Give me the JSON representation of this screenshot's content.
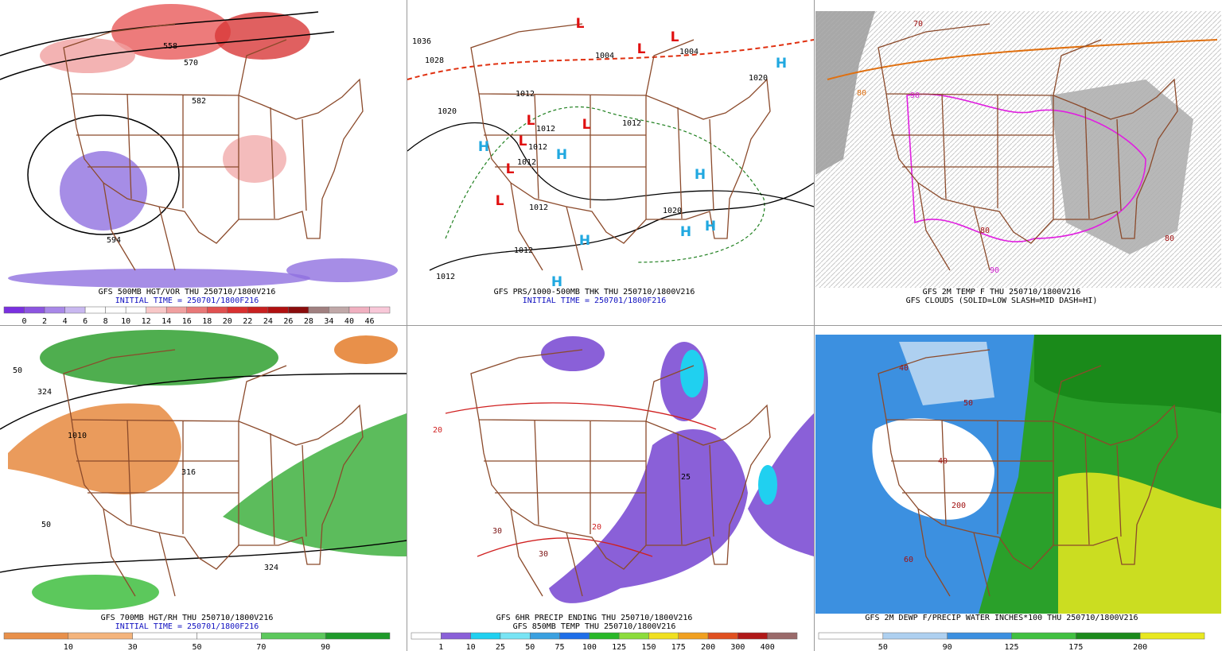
{
  "panels": [
    {
      "title_lines": [
        {
          "text": "GFS 500MB HGT/VOR THU 250710/1800V216",
          "color": "#000000"
        },
        {
          "text": "INITIAL TIME = 250701/1800F216",
          "color": "#1010c0"
        }
      ],
      "colorbar": {
        "labels": [
          0,
          2,
          4,
          6,
          8,
          10,
          12,
          14,
          16,
          18,
          20,
          22,
          24,
          26,
          28,
          34,
          40,
          46
        ],
        "colors": [
          "#7a30e0",
          "#8c55e0",
          "#a888e8",
          "#c9b8f0",
          "#ffffff",
          "#ffffff",
          "#ffffff",
          "#f8c8c8",
          "#f0a0a0",
          "#e87878",
          "#e05050",
          "#d83030",
          "#c82020",
          "#b01010",
          "#8a0c0c",
          "#a08080",
          "#c0a8a8",
          "#f0b0c0",
          "#f8c8d8"
        ]
      },
      "map_labels": [
        {
          "text": "558",
          "color": "#000000"
        },
        {
          "text": "570",
          "color": "#000000"
        },
        {
          "text": "582",
          "color": "#000000"
        },
        {
          "text": "594",
          "color": "#000000"
        }
      ]
    },
    {
      "title_lines": [
        {
          "text": "GFS PRS/1000-500MB THK THU 250710/1800V216",
          "color": "#000000"
        },
        {
          "text": "INITIAL TIME = 250701/1800F216",
          "color": "#1010c0"
        }
      ],
      "map_labels": [
        {
          "text": "L",
          "color": "#e01010"
        },
        {
          "text": "L",
          "color": "#e01010"
        },
        {
          "text": "L",
          "color": "#e01010"
        },
        {
          "text": "L",
          "color": "#e01010"
        },
        {
          "text": "L",
          "color": "#e01010"
        },
        {
          "text": "L",
          "color": "#e01010"
        },
        {
          "text": "L",
          "color": "#e01010"
        },
        {
          "text": "L",
          "color": "#e01010"
        },
        {
          "text": "H",
          "color": "#20a8e0"
        },
        {
          "text": "H",
          "color": "#20a8e0"
        },
        {
          "text": "H",
          "color": "#20a8e0"
        },
        {
          "text": "H",
          "color": "#20a8e0"
        },
        {
          "text": "H",
          "color": "#20a8e0"
        },
        {
          "text": "H",
          "color": "#20a8e0"
        },
        {
          "text": "H",
          "color": "#20a8e0"
        },
        {
          "text": "H",
          "color": "#20a8e0"
        },
        {
          "text": "1036",
          "color": "#000000"
        },
        {
          "text": "1028",
          "color": "#000000"
        },
        {
          "text": "1020",
          "color": "#000000"
        },
        {
          "text": "1012",
          "color": "#000000"
        },
        {
          "text": "1012",
          "color": "#000000"
        },
        {
          "text": "1012",
          "color": "#000000"
        },
        {
          "text": "1012",
          "color": "#000000"
        },
        {
          "text": "1012",
          "color": "#000000"
        },
        {
          "text": "1012",
          "color": "#000000"
        },
        {
          "text": "1012",
          "color": "#000000"
        },
        {
          "text": "1004",
          "color": "#000000"
        },
        {
          "text": "1004",
          "color": "#000000"
        },
        {
          "text": "1012",
          "color": "#000000"
        },
        {
          "text": "1020",
          "color": "#000000"
        },
        {
          "text": "1020",
          "color": "#000000"
        }
      ]
    },
    {
      "title_lines": [
        {
          "text": "GFS 2M TEMP F THU 250710/1800V216",
          "color": "#000000"
        },
        {
          "text": "GFS CLOUDS (SOLID=LOW SLASH=MID DASH=HI)",
          "color": "#000000"
        }
      ],
      "map_labels": [
        {
          "text": "70",
          "color": "#a01010"
        },
        {
          "text": "80",
          "color": "#e07010"
        },
        {
          "text": "90",
          "color": "#d020d0"
        },
        {
          "text": "80",
          "color": "#a01010"
        },
        {
          "text": "90",
          "color": "#d020d0"
        },
        {
          "text": "80",
          "color": "#a01010"
        }
      ]
    },
    {
      "title_lines": [
        {
          "text": "GFS 700MB HGT/RH THU 250710/1800V216",
          "color": "#000000"
        },
        {
          "text": "INITIAL TIME = 250701/1800F216",
          "color": "#1010c0"
        }
      ],
      "colorbar": {
        "labels": [
          10,
          30,
          50,
          70,
          90
        ],
        "colors": [
          "#e8904a",
          "#f4b47c",
          "#ffffff",
          "#ffffff",
          "#5cc85c",
          "#1f9a2a"
        ]
      },
      "map_labels": [
        {
          "text": "50",
          "color": "#000000"
        },
        {
          "text": "324",
          "color": "#000000"
        },
        {
          "text": "1010",
          "color": "#000000"
        },
        {
          "text": "316",
          "color": "#000000"
        },
        {
          "text": "50",
          "color": "#000000"
        },
        {
          "text": "324",
          "color": "#000000"
        }
      ]
    },
    {
      "title_lines": [
        {
          "text": "GFS 6HR PRECIP ENDING THU 250710/1800V216",
          "color": "#000000"
        },
        {
          "text": "GFS 850MB TEMP THU 250710/1800V216",
          "color": "#000000"
        }
      ],
      "colorbar": {
        "labels": [
          1,
          10,
          25,
          50,
          75,
          100,
          125,
          150,
          175,
          200,
          300,
          400
        ],
        "colors": [
          "#ffffff",
          "#8a60d8",
          "#20d0f0",
          "#78e4f4",
          "#3aa0e0",
          "#1e6ee8",
          "#28b828",
          "#8cdc3c",
          "#f0e020",
          "#f0a020",
          "#e05020",
          "#b01818",
          "#9a6a6a"
        ]
      },
      "map_labels": [
        {
          "text": "20",
          "color": "#d02020"
        },
        {
          "text": "20",
          "color": "#d02020"
        },
        {
          "text": "30",
          "color": "#7a1010"
        },
        {
          "text": "30",
          "color": "#7a1010"
        },
        {
          "text": "25",
          "color": "#000000"
        }
      ]
    },
    {
      "title_lines": [
        {
          "text": "GFS 2M DEWP F/PRECIP WATER INCHES*100 THU 250710/1800V216",
          "color": "#000000"
        }
      ],
      "colorbar": {
        "labels": [
          50,
          90,
          125,
          175,
          200
        ],
        "colors": [
          "#ffffff",
          "#aed0f0",
          "#3c90e0",
          "#40c040",
          "#1a8a1a",
          "#e8e820"
        ]
      },
      "map_labels": [
        {
          "text": "40",
          "color": "#a01010"
        },
        {
          "text": "50",
          "color": "#a01010"
        },
        {
          "text": "40",
          "color": "#a01010"
        },
        {
          "text": "200",
          "color": "#a01010"
        },
        {
          "text": "60",
          "color": "#a01010"
        }
      ]
    }
  ]
}
